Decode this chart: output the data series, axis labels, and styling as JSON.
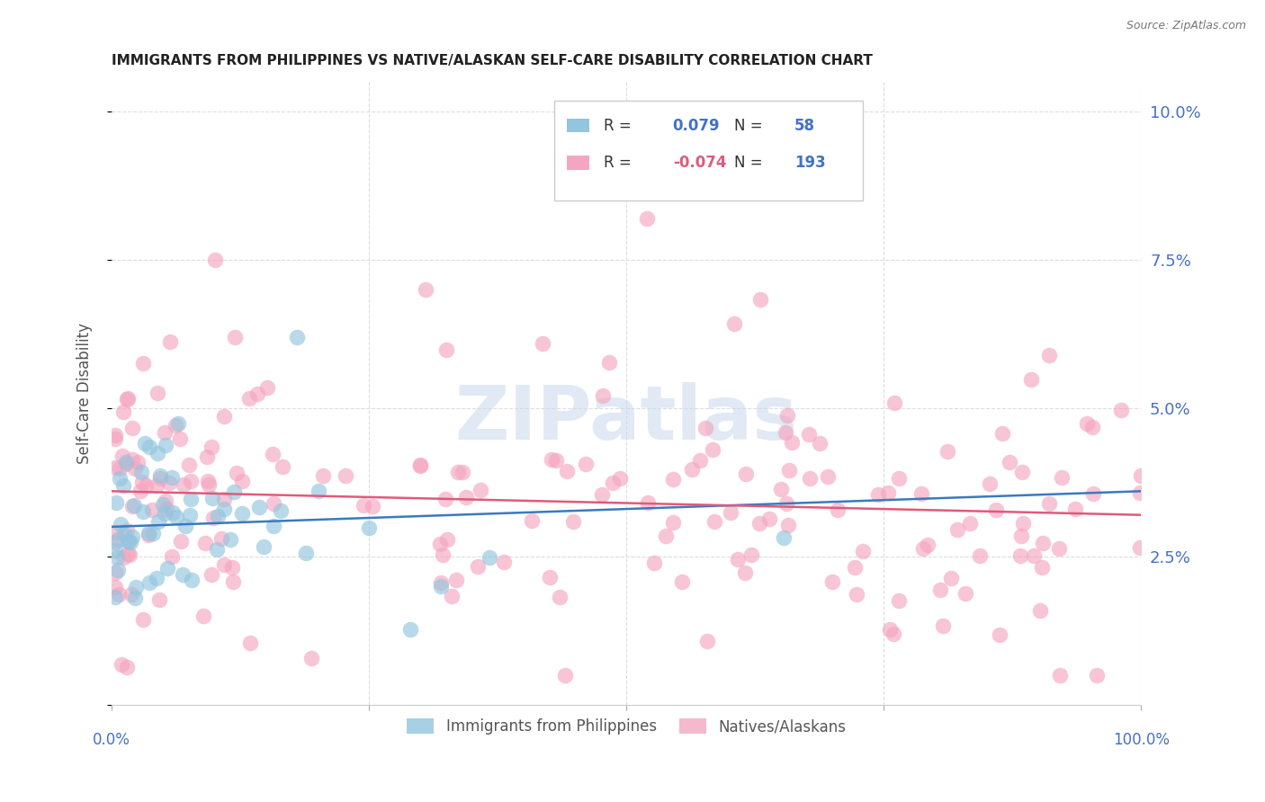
{
  "title": "IMMIGRANTS FROM PHILIPPINES VS NATIVE/ALASKAN SELF-CARE DISABILITY CORRELATION CHART",
  "source": "Source: ZipAtlas.com",
  "ylabel": "Self-Care Disability",
  "yticks": [
    0.0,
    0.025,
    0.05,
    0.075,
    0.1
  ],
  "ytick_labels": [
    "",
    "2.5%",
    "5.0%",
    "7.5%",
    "10.0%"
  ],
  "xlim": [
    0,
    1.0
  ],
  "ylim": [
    0,
    0.105
  ],
  "blue_R": 0.079,
  "blue_N": 58,
  "pink_R": -0.074,
  "pink_N": 193,
  "blue_color": "#92c5de",
  "pink_color": "#f4a6c0",
  "blue_line_color": "#3a7abf",
  "pink_line_color": "#e05a7a",
  "legend_label_blue": "Immigrants from Philippines",
  "legend_label_pink": "Natives/Alaskans",
  "watermark": "ZIPatlas",
  "title_color": "#222222",
  "axis_label_color": "#4472c4",
  "text_color": "#333333"
}
